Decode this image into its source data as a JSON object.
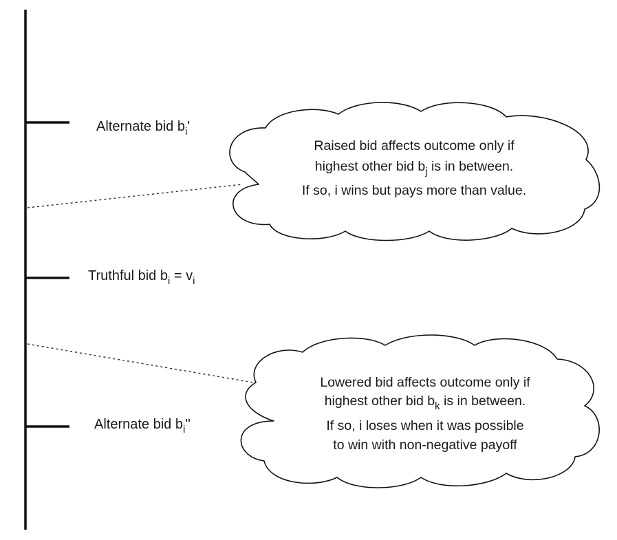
{
  "labels": {
    "alt_upper": {
      "prefix": "Alternate bid b",
      "sub": "i",
      "suffix": "'"
    },
    "truthful": {
      "prefix": "Truthful bid b",
      "sub1": "i",
      "mid": " = v",
      "sub2": "i"
    },
    "alt_lower": {
      "prefix": "Alternate bid b",
      "sub": "i",
      "suffix": "''"
    }
  },
  "cloud_upper": {
    "line1": "Raised bid affects outcome only if",
    "line2_prefix": "highest other bid b",
    "line2_sub": "j",
    "line2_suffix": " is in between.",
    "line3": "If so, i wins but pays more than value."
  },
  "cloud_lower": {
    "line1": "Lowered bid affects outcome only if",
    "line2_prefix": "highest other bid b",
    "line2_sub": "k",
    "line2_suffix": " is in between.",
    "line3": "If so, i loses when it was possible",
    "line4": "to win with non-negative payoff"
  }
}
